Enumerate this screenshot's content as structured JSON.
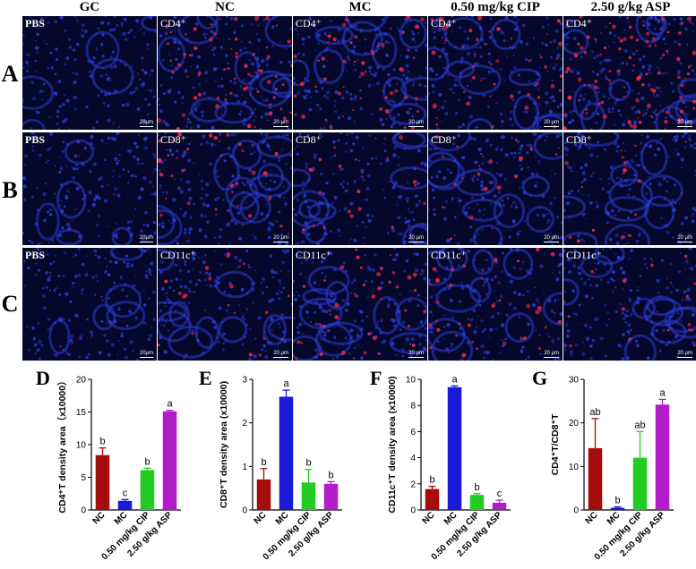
{
  "columns": [
    "GC",
    "NC",
    "MC",
    "0.50 mg/kg CIP",
    "2.50 g/kg ASP"
  ],
  "rows": [
    {
      "letter": "A",
      "marker": "CD4⁺",
      "gc_label": "PBS",
      "scale_gc": "20μm",
      "scale": "20 μm"
    },
    {
      "letter": "B",
      "marker": "CD8⁺",
      "gc_label": "PBS",
      "scale_gc": "20μm",
      "scale": "20 μm"
    },
    {
      "letter": "C",
      "marker": "CD11c⁺",
      "gc_label": "PBS",
      "scale_gc": "20μm",
      "scale": "20 μm"
    }
  ],
  "colors": {
    "NC": "#a50d0d",
    "MC": "#1a1ad6",
    "CIP": "#22cc22",
    "ASP": "#b21cc8",
    "tissue_bg": "#05082a",
    "nuclei": "#2a3cd6",
    "signal": "#e0264a"
  },
  "chart_data": [
    {
      "panel": "D",
      "type": "bar",
      "categories": [
        "NC",
        "MC",
        "0.50 mg/kg CIP",
        "2.50 g/kg ASP"
      ],
      "values": [
        8.4,
        1.4,
        6.1,
        15.1
      ],
      "errors": [
        1.1,
        0.2,
        0.3,
        0.15
      ],
      "letters": [
        "b",
        "c",
        "b",
        "a"
      ],
      "ylabel": "CD4⁺T density area（x10000）",
      "ylim": [
        0,
        20
      ],
      "yticks": [
        0,
        5,
        10,
        15,
        20
      ]
    },
    {
      "panel": "E",
      "type": "bar",
      "categories": [
        "NC",
        "MC",
        "0.50 mg/kg CIP",
        "2.50 g/kg ASP"
      ],
      "values": [
        0.7,
        2.6,
        0.63,
        0.6
      ],
      "errors": [
        0.25,
        0.15,
        0.3,
        0.05
      ],
      "letters": [
        "b",
        "a",
        "b",
        "b"
      ],
      "ylabel": "CD8⁺T density area (x10000)",
      "ylim": [
        0,
        3
      ],
      "yticks": [
        0,
        1,
        2,
        3
      ]
    },
    {
      "panel": "F",
      "type": "bar",
      "categories": [
        "NC",
        "MC",
        "0.50 mg/kg CIP",
        "2.50 g/kg ASP"
      ],
      "values": [
        1.6,
        9.4,
        1.15,
        0.55
      ],
      "errors": [
        0.2,
        0.1,
        0.1,
        0.2
      ],
      "letters": [
        "b",
        "a",
        "b",
        "c"
      ],
      "ylabel": "CD11c⁺T density area (x10000)",
      "ylim": [
        0,
        10
      ],
      "yticks": [
        0,
        2,
        4,
        6,
        8,
        10
      ]
    },
    {
      "panel": "G",
      "type": "bar",
      "categories": [
        "NC",
        "MC",
        "0.50 mg/kg CIP",
        "2.50 g/kg ASP"
      ],
      "values": [
        14.2,
        0.5,
        12.0,
        24.2
      ],
      "errors": [
        6.8,
        0.2,
        6.0,
        1.2
      ],
      "letters": [
        "ab",
        "b",
        "ab",
        "a"
      ],
      "ylabel": "CD4⁺T/CD8⁺T",
      "ylim": [
        0,
        30
      ],
      "yticks": [
        0,
        10,
        20,
        30
      ]
    }
  ]
}
